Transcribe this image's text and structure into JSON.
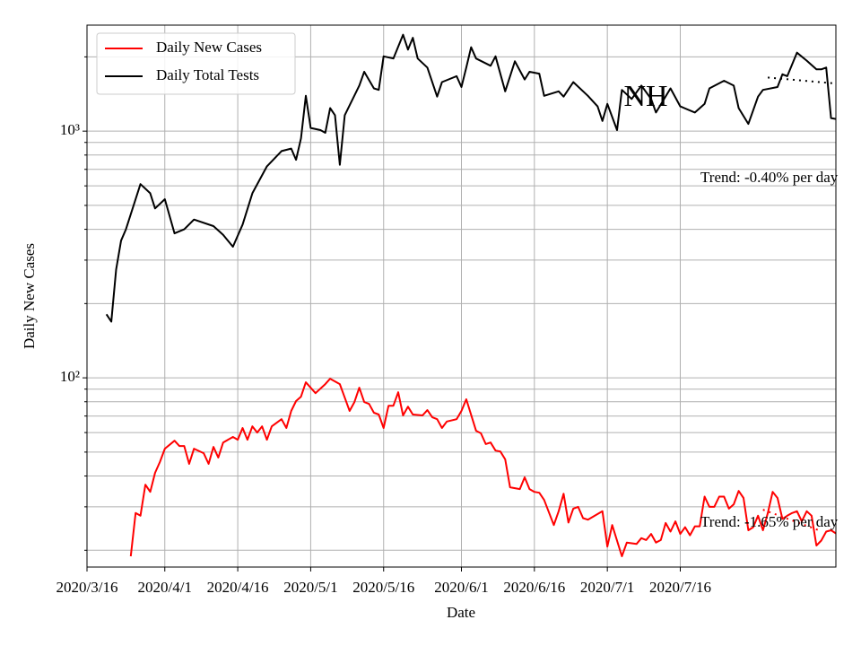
{
  "chart_data": {
    "type": "line",
    "title": "NH",
    "xlabel": "Date",
    "ylabel": "Daily New Cases",
    "log_y": true,
    "grid": true,
    "legend": "upper left",
    "xlim": [
      "2020/3/16",
      "2020/8/17"
    ],
    "xticks": [
      "2020/3/16",
      "2020/4/1",
      "2020/4/16",
      "2020/5/1",
      "2020/5/16",
      "2020/6/1",
      "2020/6/16",
      "2020/7/1",
      "2020/7/16"
    ],
    "ylim": [
      17.1,
      2690
    ],
    "yticks": [
      {
        "value": 100,
        "label": "10²"
      },
      {
        "value": 1000,
        "label": "10³"
      }
    ],
    "yminorticks": [
      20,
      30,
      40,
      50,
      60,
      70,
      80,
      90,
      200,
      300,
      400,
      500,
      600,
      700,
      800,
      900,
      2000
    ],
    "series": [
      {
        "name": "Daily New Cases",
        "color": "#ff0000",
        "x": [
          "2020/3/25",
          "2020/3/26",
          "2020/3/27",
          "2020/3/28",
          "2020/3/29",
          "2020/3/30",
          "2020/3/31",
          "2020/4/1",
          "2020/4/3",
          "2020/4/4",
          "2020/4/5",
          "2020/4/6",
          "2020/4/7",
          "2020/4/9",
          "2020/4/10",
          "2020/4/11",
          "2020/4/12",
          "2020/4/13",
          "2020/4/15",
          "2020/4/16",
          "2020/4/17",
          "2020/4/18",
          "2020/4/19",
          "2020/4/20",
          "2020/4/21",
          "2020/4/22",
          "2020/4/23",
          "2020/4/25",
          "2020/4/26",
          "2020/4/27",
          "2020/4/28",
          "2020/4/29",
          "2020/4/30",
          "2020/5/2",
          "2020/5/4",
          "2020/5/5",
          "2020/5/7",
          "2020/5/9",
          "2020/5/10",
          "2020/5/11",
          "2020/5/12",
          "2020/5/13",
          "2020/5/14",
          "2020/5/15",
          "2020/5/16",
          "2020/5/17",
          "2020/5/18",
          "2020/5/19",
          "2020/5/20",
          "2020/5/21",
          "2020/5/22",
          "2020/5/24",
          "2020/5/25",
          "2020/5/26",
          "2020/5/27",
          "2020/5/28",
          "2020/5/29",
          "2020/5/31",
          "2020/6/1",
          "2020/6/2",
          "2020/6/4",
          "2020/6/5",
          "2020/6/6",
          "2020/6/7",
          "2020/6/8",
          "2020/6/9",
          "2020/6/10",
          "2020/6/11",
          "2020/6/13",
          "2020/6/14",
          "2020/6/15",
          "2020/6/16",
          "2020/6/17",
          "2020/6/18",
          "2020/6/20",
          "2020/6/21",
          "2020/6/22",
          "2020/6/23",
          "2020/6/24",
          "2020/6/25",
          "2020/6/26",
          "2020/6/27",
          "2020/6/30",
          "2020/7/1",
          "2020/7/2",
          "2020/7/4",
          "2020/7/5",
          "2020/7/7",
          "2020/7/8",
          "2020/7/9",
          "2020/7/10",
          "2020/7/11",
          "2020/7/12",
          "2020/7/13",
          "2020/7/14",
          "2020/7/15",
          "2020/7/16",
          "2020/7/17",
          "2020/7/18",
          "2020/7/19",
          "2020/7/20",
          "2020/7/21",
          "2020/7/22",
          "2020/7/23",
          "2020/7/24",
          "2020/7/25",
          "2020/7/26",
          "2020/7/27",
          "2020/7/28",
          "2020/7/29",
          "2020/7/30",
          "2020/7/31",
          "2020/8/1",
          "2020/8/2",
          "2020/8/3",
          "2020/8/4",
          "2020/8/5",
          "2020/8/6",
          "2020/8/7",
          "2020/8/8",
          "2020/8/9",
          "2020/8/10",
          "2020/8/11",
          "2020/8/12",
          "2020/8/13",
          "2020/8/14",
          "2020/8/15",
          "2020/8/16",
          "2020/8/17"
        ],
        "values": [
          18.9,
          28.3,
          27.6,
          36.9,
          34.5,
          41.2,
          45.6,
          51.6,
          55.6,
          52.9,
          52.9,
          44.8,
          51.6,
          49.5,
          44.8,
          52.5,
          47.5,
          54.7,
          57.6,
          56.1,
          62.6,
          56.1,
          63.6,
          60,
          63.6,
          56.1,
          63.6,
          68,
          62.6,
          73.4,
          80.5,
          83.9,
          95.9,
          86.7,
          94.3,
          99.2,
          94.3,
          73.4,
          79.8,
          91.2,
          79.8,
          78.4,
          72.2,
          71,
          62.6,
          77.1,
          77.1,
          87.4,
          70.4,
          76.4,
          71,
          70.4,
          74,
          69.2,
          68,
          62.6,
          66.5,
          68,
          73.4,
          81.9,
          61,
          59.6,
          53.9,
          54.7,
          50.7,
          50.3,
          46.7,
          36,
          35.4,
          39.5,
          35.4,
          34.5,
          34.2,
          32,
          25.3,
          28.8,
          33.9,
          25.9,
          29.5,
          30,
          27,
          26.6,
          28.8,
          20.7,
          25.3,
          18.9,
          21.5,
          21.2,
          22.4,
          22,
          23.3,
          21.5,
          22,
          25.8,
          23.8,
          26.2,
          23.3,
          24.8,
          23,
          25,
          25,
          33,
          30,
          30,
          33,
          33,
          29.5,
          30.7,
          34.8,
          32.6,
          24.1,
          24.8,
          27.6,
          24.1,
          28.3,
          34.5,
          32.6,
          26.8,
          27.6,
          28.3,
          28.8,
          26.2,
          28.8,
          27.6,
          20.9,
          21.9,
          23.8,
          24.1,
          23.4
        ],
        "trend": {
          "label": "Trend: -1.65% per day",
          "x": [
            "2020/8/2",
            "2020/8/14"
          ],
          "values": [
            29.2,
            23.9
          ]
        }
      },
      {
        "name": "Daily Total Tests",
        "color": "#000000",
        "x": [
          "2020/3/20",
          "2020/3/21",
          "2020/3/22",
          "2020/3/23",
          "2020/3/24",
          "2020/3/27",
          "2020/3/29",
          "2020/3/30",
          "2020/4/1",
          "2020/4/3",
          "2020/4/5",
          "2020/4/7",
          "2020/4/11",
          "2020/4/13",
          "2020/4/15",
          "2020/4/17",
          "2020/4/19",
          "2020/4/22",
          "2020/4/25",
          "2020/4/27",
          "2020/4/28",
          "2020/4/29",
          "2020/4/30",
          "2020/5/1",
          "2020/5/3",
          "2020/5/4",
          "2020/5/5",
          "2020/5/6",
          "2020/5/7",
          "2020/5/8",
          "2020/5/11",
          "2020/5/12",
          "2020/5/14",
          "2020/5/15",
          "2020/5/16",
          "2020/5/18",
          "2020/5/20",
          "2020/5/21",
          "2020/5/22",
          "2020/5/23",
          "2020/5/25",
          "2020/5/27",
          "2020/5/28",
          "2020/5/31",
          "2020/6/1",
          "2020/6/2",
          "2020/6/3",
          "2020/6/4",
          "2020/6/7",
          "2020/6/8",
          "2020/6/10",
          "2020/6/12",
          "2020/6/14",
          "2020/6/15",
          "2020/6/17",
          "2020/6/18",
          "2020/6/21",
          "2020/6/22",
          "2020/6/24",
          "2020/6/27",
          "2020/6/29",
          "2020/6/30",
          "2020/7/1",
          "2020/7/3",
          "2020/7/4",
          "2020/7/6",
          "2020/7/8",
          "2020/7/10",
          "2020/7/11",
          "2020/7/14",
          "2020/7/16",
          "2020/7/19",
          "2020/7/21",
          "2020/7/22",
          "2020/7/25",
          "2020/7/27",
          "2020/7/28",
          "2020/7/30",
          "2020/8/1",
          "2020/8/2",
          "2020/8/5",
          "2020/8/6",
          "2020/8/7",
          "2020/8/9",
          "2020/8/11",
          "2020/8/13",
          "2020/8/14",
          "2020/8/15",
          "2020/8/16",
          "2020/8/17"
        ],
        "values": [
          181,
          169,
          275,
          360,
          400,
          610,
          560,
          486,
          530,
          385,
          400,
          438,
          412,
          380,
          340,
          418,
          560,
          720,
          830,
          850,
          765,
          935,
          1390,
          1030,
          1010,
          985,
          1240,
          1160,
          730,
          1160,
          1530,
          1740,
          1490,
          1470,
          2010,
          1970,
          2460,
          2140,
          2390,
          1970,
          1810,
          1380,
          1580,
          1670,
          1510,
          1810,
          2190,
          1970,
          1840,
          2010,
          1450,
          1920,
          1620,
          1740,
          1710,
          1390,
          1450,
          1380,
          1580,
          1390,
          1260,
          1100,
          1290,
          1010,
          1470,
          1350,
          1530,
          1350,
          1190,
          1490,
          1260,
          1190,
          1290,
          1490,
          1600,
          1530,
          1240,
          1070,
          1380,
          1470,
          1510,
          1700,
          1670,
          2080,
          1930,
          1780,
          1780,
          1810,
          1130,
          1120
        ],
        "trend": {
          "label": "Trend: -0.40% per day",
          "x": [
            "2020/8/3",
            "2020/8/17"
          ],
          "values": [
            1650,
            1560
          ]
        }
      }
    ]
  }
}
